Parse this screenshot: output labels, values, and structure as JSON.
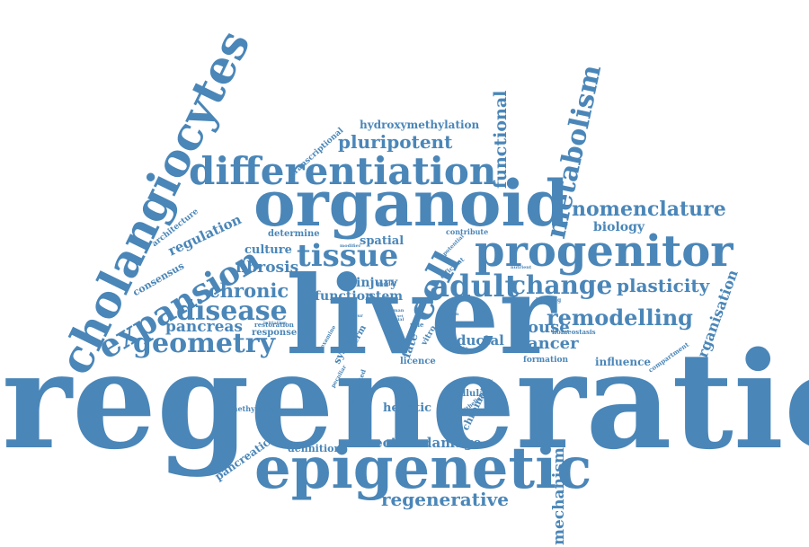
{
  "cloud": {
    "color": "#4a86b8",
    "words": [
      "regeneration",
      "liver",
      "organoid",
      "epigenetic",
      "cholangiocytes",
      "differentiation",
      "progenitor",
      "expansion",
      "metabolism",
      "tissue",
      "cell",
      "adult",
      "change",
      "disease",
      "geometry",
      "remodelling",
      "pluripotent",
      "functional",
      "nomenclature",
      "plasticity",
      "chronic",
      "pancreas",
      "regenerative",
      "mechanism",
      "organisation",
      "mouse",
      "cancer",
      "fibrosis",
      "directed",
      "damage",
      "ductal",
      "hepatic",
      "function",
      "stem",
      "biology",
      "regulation",
      "culture",
      "injury",
      "spatial",
      "fate",
      "hydroxymethylation",
      "determine",
      "consensus",
      "architecture",
      "transcriptional",
      "response",
      "system",
      "term",
      "licence",
      "influence",
      "cellular",
      "chromatin",
      "definition",
      "pancreatic",
      "methylation",
      "formation",
      "homeostasis",
      "compartment",
      "contribute",
      "restoration",
      "initiation",
      "building",
      "efficient",
      "vitro",
      "model",
      "role",
      "committed",
      "peculiar",
      "examine",
      "epithelial",
      "initiate",
      "organ",
      "crucial",
      "modifier",
      "nutrient",
      "potential",
      "favour",
      "human",
      "set"
    ]
  }
}
